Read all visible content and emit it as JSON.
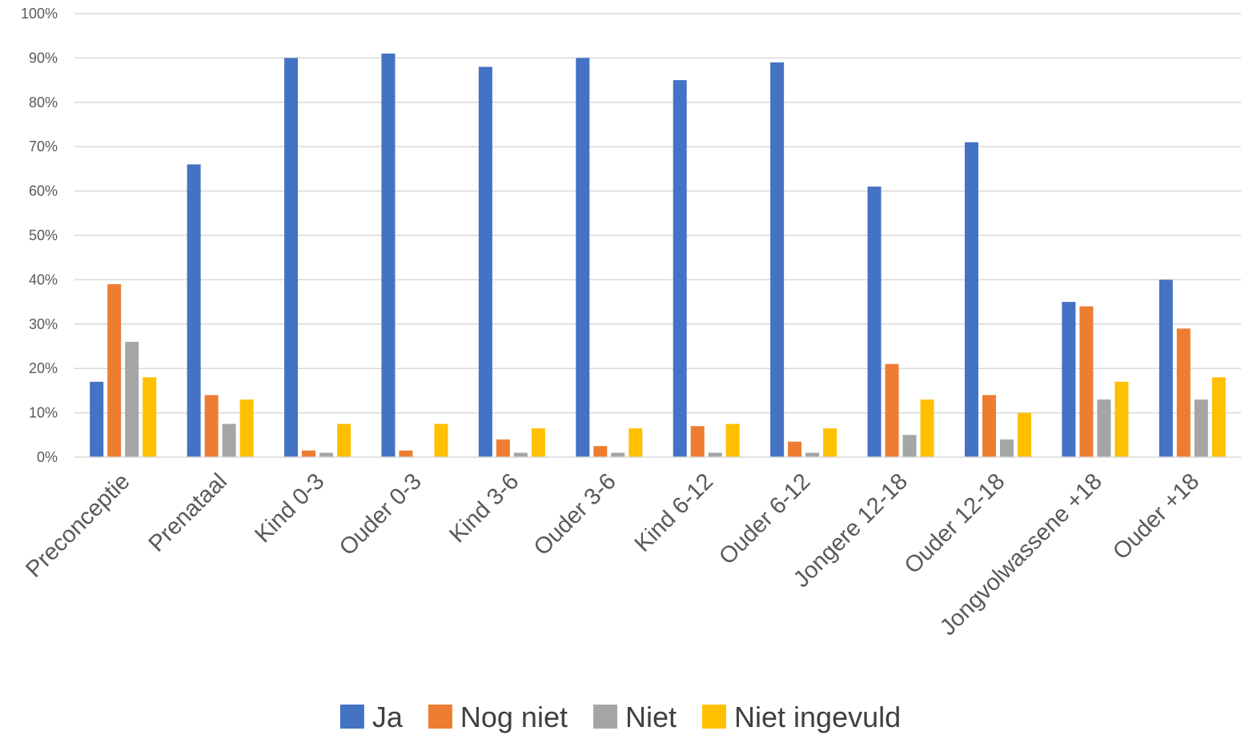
{
  "chart_data": {
    "type": "bar",
    "categories": [
      "Preconceptie",
      "Prenataal",
      "Kind 0-3",
      "Ouder 0-3",
      "Kind 3-6",
      "Ouder 3-6",
      "Kind 6-12",
      "Ouder 6-12",
      "Jongere 12-18",
      "Ouder 12-18",
      "Jongvolwassene +18",
      "Ouder +18"
    ],
    "series": [
      {
        "name": "Ja",
        "color": "#4472C4",
        "values": [
          17,
          66,
          90,
          91,
          88,
          90,
          85,
          89,
          61,
          71,
          35,
          40
        ]
      },
      {
        "name": "Nog niet",
        "color": "#ED7D31",
        "values": [
          39,
          14,
          1.5,
          1.5,
          4,
          2.5,
          7,
          3.5,
          21,
          14,
          34,
          29
        ]
      },
      {
        "name": "Niet",
        "color": "#A5A5A5",
        "values": [
          26,
          7.5,
          1,
          0,
          1,
          1,
          1,
          1,
          5,
          4,
          13,
          13
        ]
      },
      {
        "name": "Niet ingevuld",
        "color": "#FFC000",
        "values": [
          18,
          13,
          7.5,
          7.5,
          6.5,
          6.5,
          7.5,
          6.5,
          13,
          10,
          17,
          18
        ]
      }
    ],
    "yticks": [
      "0%",
      "10%",
      "20%",
      "30%",
      "40%",
      "50%",
      "60%",
      "70%",
      "80%",
      "90%",
      "100%"
    ],
    "ylim": [
      0,
      100
    ],
    "grid": true,
    "legend": "bottom"
  }
}
